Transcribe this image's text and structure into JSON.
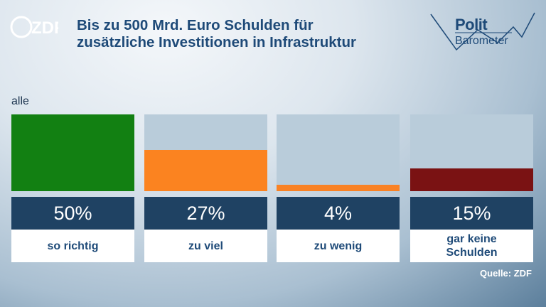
{
  "header": {
    "logo_text": "ZDF",
    "title_line1": "Bis zu 500 Mrd. Euro Schulden für",
    "title_line2": "zusätzliche Investitionen in Infrastruktur",
    "brand_line1": "Polit",
    "brand_line2": "Barometer"
  },
  "colors": {
    "title": "#1e4a78",
    "value_box": "#1f4263",
    "track": "#b9ccda"
  },
  "chart_data": {
    "type": "bar",
    "group_label": "alle",
    "categories": [
      "so richtig",
      "zu viel",
      "zu wenig",
      "gar keine Schulden"
    ],
    "values": [
      50,
      27,
      4,
      15
    ],
    "value_labels": [
      "50%",
      "27%",
      "4%",
      "15%"
    ],
    "bar_colors": [
      "#128012",
      "#fb8320",
      "#f98225",
      "#7a1213"
    ],
    "ylim": [
      0,
      50
    ],
    "xlabel": "",
    "ylabel": "",
    "grid": false,
    "legend": "none"
  },
  "source": "Quelle: ZDF"
}
